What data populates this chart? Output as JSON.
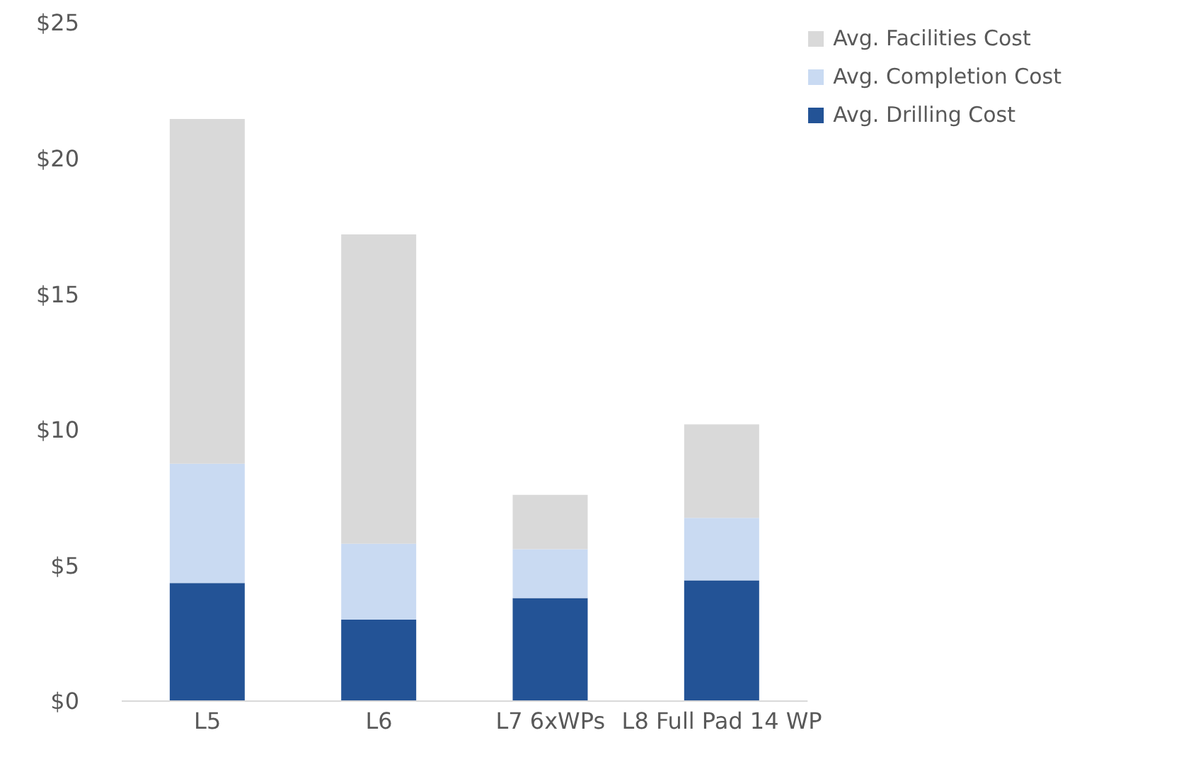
{
  "chart_data": {
    "type": "bar",
    "stacked": true,
    "categories": [
      "L5",
      "L6",
      "L7 6xWPs",
      "L8 Full Pad 14 WP"
    ],
    "series": [
      {
        "name": "Avg. Drilling Cost",
        "color": "#235396",
        "values": [
          4.35,
          3.0,
          3.8,
          4.45
        ]
      },
      {
        "name": "Avg. Completion Cost",
        "color": "#c9daf2",
        "values": [
          4.4,
          2.8,
          1.8,
          2.3
        ]
      },
      {
        "name": "Avg. Facilities Cost",
        "color": "#d9d9d9",
        "values": [
          12.7,
          11.4,
          2.0,
          3.45
        ]
      }
    ],
    "ylim": [
      0,
      25
    ],
    "yticks": [
      {
        "value": 0,
        "label": "$0"
      },
      {
        "value": 5,
        "label": "$5"
      },
      {
        "value": 10,
        "label": "$10"
      },
      {
        "value": 15,
        "label": "$15"
      },
      {
        "value": 20,
        "label": "$20"
      },
      {
        "value": 25,
        "label": "$25"
      }
    ],
    "grid": false,
    "legend": "top right"
  }
}
